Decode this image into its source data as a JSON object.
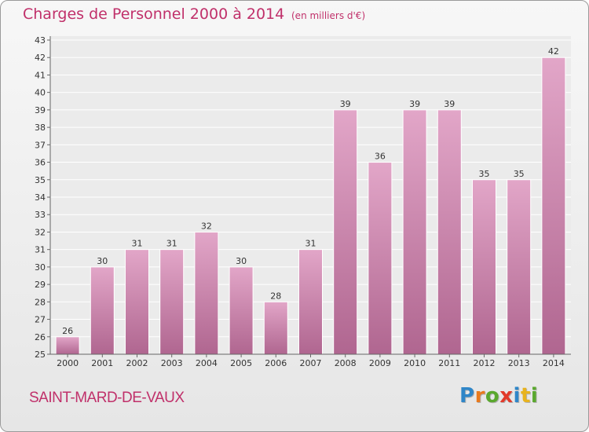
{
  "header": {
    "title": "Charges de Personnel 2000 à 2014",
    "subtitle": "(en milliers d'€)"
  },
  "footer": {
    "location": "SAINT-MARD-DE-VAUX",
    "brand_letters": [
      {
        "ch": "P",
        "color": "#2f86c8"
      },
      {
        "ch": "r",
        "color": "#e87a1e"
      },
      {
        "ch": "o",
        "color": "#5aa82e"
      },
      {
        "ch": "x",
        "color": "#e23a2a"
      },
      {
        "ch": "i",
        "color": "#2f86c8"
      },
      {
        "ch": "t",
        "color": "#e8b31e"
      },
      {
        "ch": "i",
        "color": "#5aa82e"
      }
    ]
  },
  "colors": {
    "accent": "#c0306a",
    "bar_top": "#e2a6c8",
    "bar_bottom": "#b06690"
  },
  "chart_data": {
    "type": "bar",
    "categories": [
      "2000",
      "2001",
      "2002",
      "2003",
      "2004",
      "2005",
      "2006",
      "2007",
      "2008",
      "2009",
      "2010",
      "2011",
      "2012",
      "2013",
      "2014"
    ],
    "values": [
      26,
      30,
      31,
      31,
      32,
      30,
      28,
      31,
      39,
      36,
      39,
      39,
      35,
      35,
      42
    ],
    "ylim": [
      25,
      43
    ],
    "yticks": [
      25,
      26,
      27,
      28,
      29,
      30,
      31,
      32,
      33,
      34,
      35,
      36,
      37,
      38,
      39,
      40,
      41,
      42,
      43
    ],
    "grid": true,
    "legend": "none",
    "title": "Charges de Personnel 2000 à 2014",
    "subtitle": "(en milliers d'€)",
    "xlabel": "",
    "ylabel": ""
  }
}
